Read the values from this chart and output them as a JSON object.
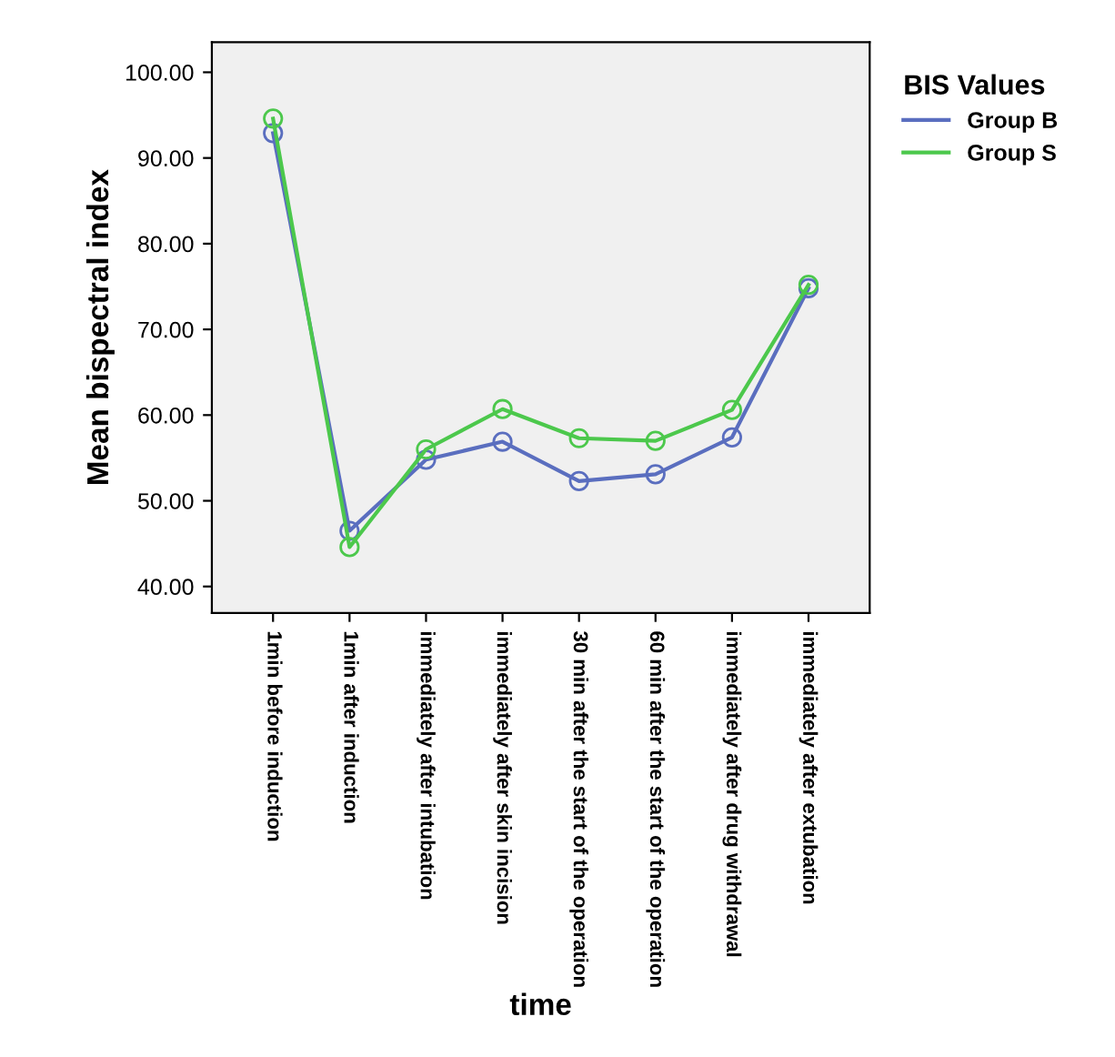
{
  "chart_data": {
    "type": "line",
    "xlabel": "time",
    "ylabel": "Mean bispectral index",
    "legend_title": "BIS Values",
    "legend": "right",
    "marker": "circle",
    "line_style": "solid",
    "grid": false,
    "categories": [
      "1min before induction",
      "1min after induction",
      "immediately after intubation",
      "immediately after skin incision",
      "30 min after the start of the operation",
      "60 min after the start of the operation",
      "immediately after drug withdrawal",
      "immediately after extubation"
    ],
    "series": [
      {
        "name": "Group B",
        "color": "#5a6ebf",
        "values": [
          92.9,
          46.5,
          54.8,
          56.9,
          52.3,
          53.1,
          57.4,
          74.8
        ]
      },
      {
        "name": "Group S",
        "color": "#4cc84c",
        "values": [
          94.6,
          44.6,
          56.0,
          60.7,
          57.3,
          57.0,
          60.6,
          75.2
        ]
      }
    ],
    "ylim": [
      36.9,
      103.5
    ],
    "yticks": [
      {
        "value": 40,
        "label": "40.00"
      },
      {
        "value": 50,
        "label": "50.00"
      },
      {
        "value": 60,
        "label": "60.00"
      },
      {
        "value": 70,
        "label": "70.00"
      },
      {
        "value": 80,
        "label": "80.00"
      },
      {
        "value": 90,
        "label": "90.00"
      },
      {
        "value": 100,
        "label": "100.00"
      }
    ]
  }
}
